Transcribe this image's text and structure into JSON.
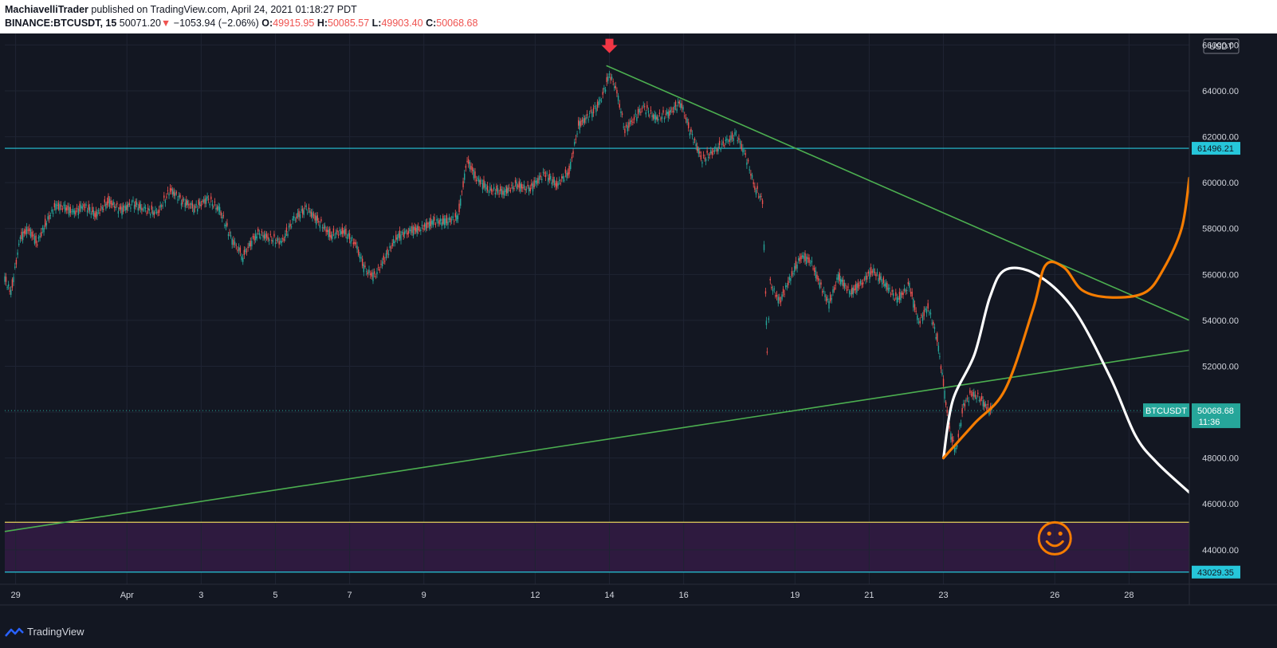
{
  "header": {
    "author": "MachiavelliTrader",
    "published_text": "published on TradingView.com, April 24, 2021 01:18:27 PDT",
    "symbol": "BINANCE:BTCUSDT, 15",
    "last": "50071.20",
    "change": "−1053.94 (−2.06%)",
    "o_label": "O:",
    "o": "49915.95",
    "h_label": "H:",
    "h": "50085.57",
    "l_label": "L:",
    "l": "49903.40",
    "c_label": "C:",
    "c": "50068.68"
  },
  "currency_label": "USDT",
  "footer": {
    "brand": "TradingView"
  },
  "chart_data": {
    "type": "line",
    "title": "BINANCE:BTCUSDT, 15",
    "ylim": [
      42500,
      66500
    ],
    "xlim": [
      "2021-03-28 17:00",
      "2021-04-29 15:00"
    ],
    "y_ticks": [
      "66000.00",
      "64000.00",
      "62000.00",
      "60000.00",
      "58000.00",
      "56000.00",
      "54000.00",
      "52000.00",
      "50000.00",
      "48000.00",
      "46000.00",
      "44000.00"
    ],
    "x_ticks": [
      {
        "t": "2021-03-29 00:00",
        "label": "29"
      },
      {
        "t": "2021-04-01 00:00",
        "label": "Apr"
      },
      {
        "t": "2021-04-03 00:00",
        "label": "3"
      },
      {
        "t": "2021-04-05 00:00",
        "label": "5"
      },
      {
        "t": "2021-04-07 00:00",
        "label": "7"
      },
      {
        "t": "2021-04-09 00:00",
        "label": "9"
      },
      {
        "t": "2021-04-12 00:00",
        "label": "12"
      },
      {
        "t": "2021-04-14 00:00",
        "label": "14"
      },
      {
        "t": "2021-04-16 00:00",
        "label": "16"
      },
      {
        "t": "2021-04-19 00:00",
        "label": "19"
      },
      {
        "t": "2021-04-21 00:00",
        "label": "21"
      },
      {
        "t": "2021-04-23 00:00",
        "label": "23"
      },
      {
        "t": "2021-04-26 00:00",
        "label": "26"
      },
      {
        "t": "2021-04-28 00:00",
        "label": "28"
      }
    ],
    "grid": true,
    "series": [
      {
        "color": "#26a69a",
        "down_color": "#ef5350",
        "values": [
          [
            "2021-03-28 17:00",
            55800
          ],
          [
            "2021-03-28 21:00",
            55200
          ],
          [
            "2021-03-29 03:00",
            57600
          ],
          [
            "2021-03-29 08:00",
            58000
          ],
          [
            "2021-03-29 14:00",
            57400
          ],
          [
            "2021-03-29 20:00",
            58300
          ],
          [
            "2021-03-30 02:00",
            59000
          ],
          [
            "2021-03-30 08:00",
            58900
          ],
          [
            "2021-03-30 14:00",
            58700
          ],
          [
            "2021-03-30 20:00",
            59000
          ],
          [
            "2021-03-31 04:00",
            58600
          ],
          [
            "2021-03-31 12:00",
            59200
          ],
          [
            "2021-03-31 20:00",
            58800
          ],
          [
            "2021-04-01 04:00",
            59100
          ],
          [
            "2021-04-01 12:00",
            58800
          ],
          [
            "2021-04-01 20:00",
            58700
          ],
          [
            "2021-04-02 04:00",
            59700
          ],
          [
            "2021-04-02 12:00",
            59200
          ],
          [
            "2021-04-02 20:00",
            58900
          ],
          [
            "2021-04-03 04:00",
            59300
          ],
          [
            "2021-04-03 12:00",
            58800
          ],
          [
            "2021-04-03 20:00",
            57500
          ],
          [
            "2021-04-04 03:00",
            56800
          ],
          [
            "2021-04-04 12:00",
            57800
          ],
          [
            "2021-04-04 20:00",
            57600
          ],
          [
            "2021-04-05 04:00",
            57400
          ],
          [
            "2021-04-05 12:00",
            58400
          ],
          [
            "2021-04-05 20:00",
            58900
          ],
          [
            "2021-04-06 04:00",
            58300
          ],
          [
            "2021-04-06 12:00",
            57700
          ],
          [
            "2021-04-06 20:00",
            57900
          ],
          [
            "2021-04-07 04:00",
            57300
          ],
          [
            "2021-04-07 10:00",
            56200
          ],
          [
            "2021-04-07 16:00",
            55900
          ],
          [
            "2021-04-07 22:00",
            56600
          ],
          [
            "2021-04-08 06:00",
            57600
          ],
          [
            "2021-04-08 14:00",
            57900
          ],
          [
            "2021-04-08 22:00",
            58000
          ],
          [
            "2021-04-09 06:00",
            58300
          ],
          [
            "2021-04-09 14:00",
            58300
          ],
          [
            "2021-04-09 22:00",
            58500
          ],
          [
            "2021-04-10 04:00",
            61000
          ],
          [
            "2021-04-10 10:00",
            60200
          ],
          [
            "2021-04-10 18:00",
            59700
          ],
          [
            "2021-04-11 04:00",
            59600
          ],
          [
            "2021-04-11 12:00",
            59900
          ],
          [
            "2021-04-11 20:00",
            59700
          ],
          [
            "2021-04-12 06:00",
            60400
          ],
          [
            "2021-04-12 14:00",
            59900
          ],
          [
            "2021-04-12 22:00",
            60500
          ],
          [
            "2021-04-13 04:00",
            62500
          ],
          [
            "2021-04-13 12:00",
            63000
          ],
          [
            "2021-04-13 18:00",
            63500
          ],
          [
            "2021-04-14 00:00",
            64700
          ],
          [
            "2021-04-14 04:00",
            64200
          ],
          [
            "2021-04-14 10:00",
            62300
          ],
          [
            "2021-04-14 16:00",
            62800
          ],
          [
            "2021-04-14 22:00",
            63300
          ],
          [
            "2021-04-15 06:00",
            62800
          ],
          [
            "2021-04-15 14:00",
            63000
          ],
          [
            "2021-04-15 22:00",
            63500
          ],
          [
            "2021-04-16 04:00",
            62300
          ],
          [
            "2021-04-16 12:00",
            61000
          ],
          [
            "2021-04-16 20:00",
            61400
          ],
          [
            "2021-04-17 04:00",
            61800
          ],
          [
            "2021-04-17 10:00",
            62100
          ],
          [
            "2021-04-17 16:00",
            61200
          ],
          [
            "2021-04-17 22:00",
            59800
          ],
          [
            "2021-04-18 03:00",
            59200
          ],
          [
            "2021-04-18 05:00",
            55200
          ],
          [
            "2021-04-18 06:00",
            52500
          ],
          [
            "2021-04-18 08:00",
            55600
          ],
          [
            "2021-04-18 14:00",
            54800
          ],
          [
            "2021-04-18 22:00",
            56000
          ],
          [
            "2021-04-19 04:00",
            56800
          ],
          [
            "2021-04-19 10:00",
            56600
          ],
          [
            "2021-04-19 16:00",
            55600
          ],
          [
            "2021-04-19 22:00",
            54700
          ],
          [
            "2021-04-20 04:00",
            55900
          ],
          [
            "2021-04-20 12:00",
            55200
          ],
          [
            "2021-04-20 20:00",
            55700
          ],
          [
            "2021-04-21 02:00",
            56200
          ],
          [
            "2021-04-21 10:00",
            55600
          ],
          [
            "2021-04-21 18:00",
            54900
          ],
          [
            "2021-04-22 02:00",
            55500
          ],
          [
            "2021-04-22 08:00",
            53900
          ],
          [
            "2021-04-22 14:00",
            54600
          ],
          [
            "2021-04-22 20:00",
            53200
          ],
          [
            "2021-04-23 00:00",
            51200
          ],
          [
            "2021-04-23 04:00",
            49200
          ],
          [
            "2021-04-23 08:00",
            48300
          ],
          [
            "2021-04-23 13:00",
            50300
          ],
          [
            "2021-04-23 18:00",
            50800
          ],
          [
            "2021-04-24 00:00",
            50600
          ],
          [
            "2021-04-24 04:00",
            50200
          ],
          [
            "2021-04-24 08:00",
            50068
          ]
        ]
      }
    ],
    "horizontal_levels": [
      {
        "value": 61496.21,
        "label": "61496.21",
        "color": "#26c6da"
      },
      {
        "value": 43029.35,
        "label": "43029.35",
        "color": "#26c6da"
      },
      {
        "value": 45200,
        "color": "#e6d25c"
      }
    ],
    "zone": {
      "from": 43029.35,
      "to": 45200,
      "color": "#2e1a3f"
    },
    "current_price": {
      "value": 50068.68,
      "label": "50068.68",
      "symbol": "BTCUSDT",
      "countdown": "11:36",
      "color": "#26a69a"
    },
    "trendlines": [
      {
        "from": [
          "2021-04-13 22:00",
          65100
        ],
        "to": [
          "2021-04-29 15:00",
          54000
        ],
        "color": "#4caf50"
      },
      {
        "from": [
          "2021-03-28 17:00",
          44800
        ],
        "to": [
          "2021-04-29 15:00",
          52700
        ],
        "color": "#4caf50"
      }
    ],
    "projections": [
      {
        "color": "#ffffff",
        "points": [
          [
            "2021-04-23 00:00",
            48000
          ],
          [
            "2021-04-23 06:00",
            50500
          ],
          [
            "2021-04-23 20:00",
            52500
          ],
          [
            "2021-04-24 06:00",
            55000
          ],
          [
            "2021-04-24 16:00",
            56200
          ],
          [
            "2021-04-25 12:00",
            56000
          ],
          [
            "2021-04-26 12:00",
            54500
          ],
          [
            "2021-04-27 12:00",
            51500
          ],
          [
            "2021-04-28 04:00",
            49000
          ],
          [
            "2021-04-28 18:00",
            47800
          ],
          [
            "2021-04-29 15:00",
            46500
          ]
        ]
      },
      {
        "color": "#f57c00",
        "points": [
          [
            "2021-04-23 00:00",
            48000
          ],
          [
            "2021-04-23 20:00",
            49500
          ],
          [
            "2021-04-24 16:00",
            51000
          ],
          [
            "2021-04-25 10:00",
            54500
          ],
          [
            "2021-04-25 18:00",
            56400
          ],
          [
            "2021-04-26 06:00",
            56300
          ],
          [
            "2021-04-26 18:00",
            55300
          ],
          [
            "2021-04-27 12:00",
            55000
          ],
          [
            "2021-04-28 10:00",
            55200
          ],
          [
            "2021-04-28 22:00",
            56200
          ],
          [
            "2021-04-29 10:00",
            58000
          ],
          [
            "2021-04-29 15:00",
            60200
          ]
        ]
      }
    ],
    "annotations": [
      {
        "type": "arrow-down",
        "at": [
          "2021-04-14 00:00",
          66200
        ],
        "color": "#f23645"
      },
      {
        "type": "smiley",
        "at": [
          "2021-04-26 00:00",
          44500
        ],
        "color": "#f57c00"
      }
    ]
  }
}
